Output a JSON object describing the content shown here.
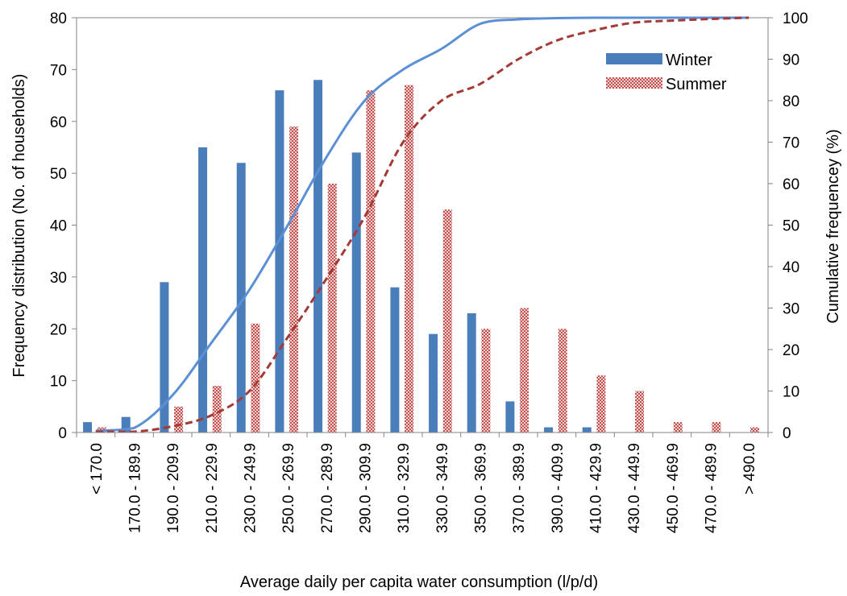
{
  "chart_data": {
    "type": "bar",
    "title": "",
    "xlabel": "Average daily per capita water consumption (l/p/d)",
    "ylabel": "Frequency distribution (No. of households)",
    "y2label": "Cumulative frequencey (%)",
    "ylim": [
      0,
      80
    ],
    "y2lim": [
      0,
      100
    ],
    "yticks": [
      0,
      10,
      20,
      30,
      40,
      50,
      60,
      70,
      80
    ],
    "y2ticks": [
      0,
      10,
      20,
      30,
      40,
      50,
      60,
      70,
      80,
      90,
      100
    ],
    "legend_position": "top-right",
    "categories": [
      "< 170.0",
      "170.0 - 189.9",
      "190.0 - 209.9",
      "210.0 - 229.9",
      "230.0 - 249.9",
      "250.0 - 269.9",
      "270.0 - 289.9",
      "290.0 - 309.9",
      "310.0 - 329.9",
      "330.0 - 349.9",
      "350.0 - 369.9",
      "370.0 - 389.9",
      "390.0 - 409.9",
      "410.0 - 429.9",
      "430.0 - 449.9",
      "450.0 - 469.9",
      "470.0 - 489.9",
      "> 490.0"
    ],
    "series": [
      {
        "name": "Winter",
        "kind": "bar",
        "axis": "left",
        "color": "#4a7ebb",
        "values": [
          2,
          3,
          29,
          55,
          52,
          66,
          68,
          54,
          28,
          19,
          23,
          6,
          1,
          1,
          0,
          0,
          0,
          0
        ]
      },
      {
        "name": "Summer",
        "kind": "bar",
        "axis": "left",
        "color": "#c0504d",
        "pattern": "crosshatch",
        "values": [
          1,
          0,
          5,
          9,
          21,
          59,
          48,
          66,
          67,
          43,
          20,
          24,
          20,
          11,
          8,
          2,
          2,
          1
        ]
      },
      {
        "kind": "line",
        "axis": "right",
        "color": "#5b8fd6",
        "style": "solid",
        "values": [
          0.4,
          1.1,
          9.0,
          21.5,
          34.4,
          50.0,
          66.3,
          80.0,
          87.5,
          92.5,
          98.5,
          99.6,
          99.9,
          100,
          100,
          100,
          100,
          100
        ]
      },
      {
        "kind": "line",
        "axis": "right",
        "color": "#a33a36",
        "style": "dashed",
        "values": [
          0.2,
          0.2,
          1.5,
          4.1,
          10.0,
          23.0,
          37.0,
          52.0,
          70.0,
          80.0,
          84.0,
          90.0,
          94.5,
          97.0,
          98.8,
          99.3,
          99.7,
          100
        ]
      }
    ]
  }
}
